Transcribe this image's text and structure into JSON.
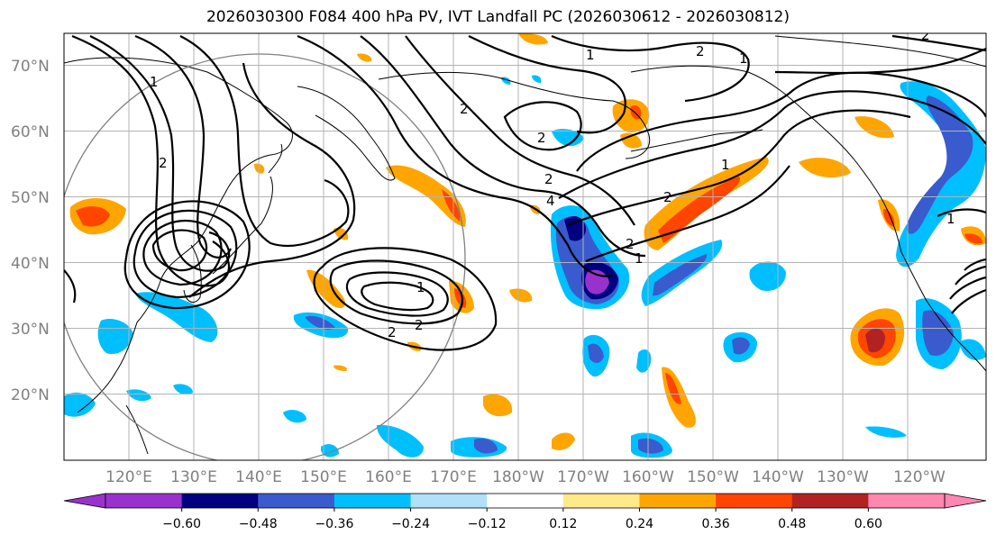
{
  "title": "2026030300 F084 400 hPa PV, IVT Landfall PC (2026030612 - 2026030812)",
  "lat_labels": [
    "70°N",
    "60°N",
    "50°N",
    "40°N",
    "30°N",
    "20°N"
  ],
  "lat_values": [
    70,
    60,
    50,
    40,
    30,
    20
  ],
  "lon_labels": [
    "120°E",
    "130°E",
    "140°E",
    "150°E",
    "160°E",
    "170°E",
    "180°W",
    "170°W",
    "160°W",
    "150°W",
    "140°W",
    "130°W",
    "120°W"
  ],
  "lon_values": [
    120,
    130,
    140,
    150,
    160,
    170,
    180,
    190,
    200,
    210,
    220,
    230,
    240
  ],
  "map_extent": {
    "lon_min": 110,
    "lon_max": 252,
    "lat_min": 10,
    "lat_max": 75
  },
  "colorbar": {
    "ticks": [
      "−0.60",
      "−0.48",
      "−0.36",
      "−0.24",
      "−0.12",
      "0.12",
      "0.24",
      "0.36",
      "0.48",
      "0.60"
    ],
    "colors": [
      "#9932cc",
      "#000080",
      "#3a5bcd",
      "#00bfff",
      "#b0e0fa",
      "#ffffff",
      "#ffe98a",
      "#ffa500",
      "#ff4500",
      "#b22222",
      "#ff87b0"
    ]
  },
  "contour_labels": [
    "1",
    "2",
    "2",
    "1",
    "2",
    "2",
    "2",
    "1",
    "2",
    "1",
    "2",
    "2",
    "4",
    "1",
    "1",
    "2",
    "2",
    "1"
  ]
}
